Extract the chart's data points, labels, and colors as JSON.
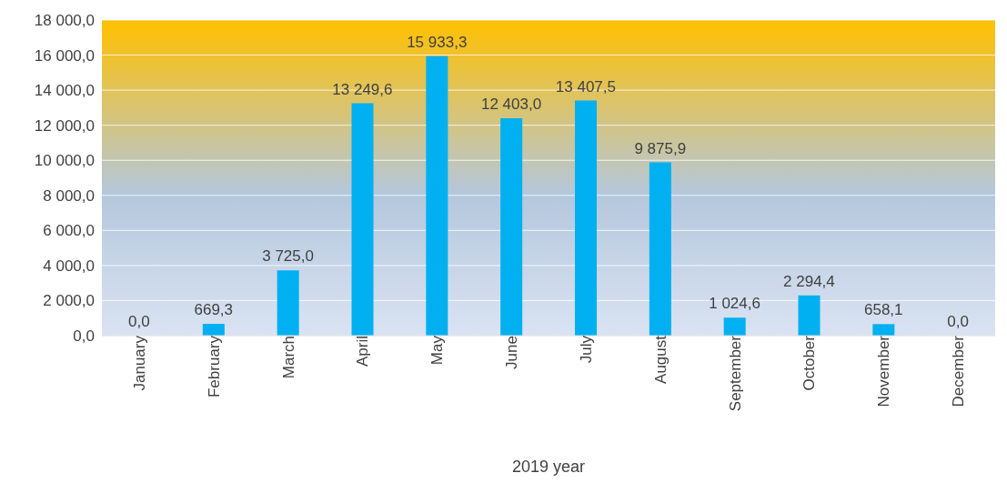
{
  "chart_data": {
    "type": "bar",
    "xlabel": "2019 year",
    "categories": [
      "January",
      "February",
      "March",
      "April",
      "May",
      "June",
      "July",
      "August",
      "September",
      "October",
      "November",
      "December"
    ],
    "values": [
      0,
      669.3,
      3725.0,
      13249.6,
      15933.3,
      12403.0,
      13407.5,
      9875.9,
      1024.6,
      2294.4,
      658.1,
      0
    ],
    "value_labels": [
      "0,0",
      "669,3",
      "3 725,0",
      "13 249,6",
      "15 933,3",
      "12 403,0",
      "13 407,5",
      "9 875,9",
      "1 024,6",
      "2 294,4",
      "658,1",
      "0,0"
    ],
    "color": "#00b0f0",
    "ylim": [
      0,
      18000
    ],
    "yticks": [
      {
        "value": 0,
        "label": "0,0"
      },
      {
        "value": 2000,
        "label": "2 000,0"
      },
      {
        "value": 4000,
        "label": "4 000,0"
      },
      {
        "value": 6000,
        "label": "6 000,0"
      },
      {
        "value": 8000,
        "label": "8 000,0"
      },
      {
        "value": 10000,
        "label": "10 000,0"
      },
      {
        "value": 12000,
        "label": "12 000,0"
      },
      {
        "value": 14000,
        "label": "14 000,0"
      },
      {
        "value": 16000,
        "label": "16 000,0"
      },
      {
        "value": 18000,
        "label": "18 000,0"
      }
    ],
    "grid": "y",
    "legend": false
  }
}
